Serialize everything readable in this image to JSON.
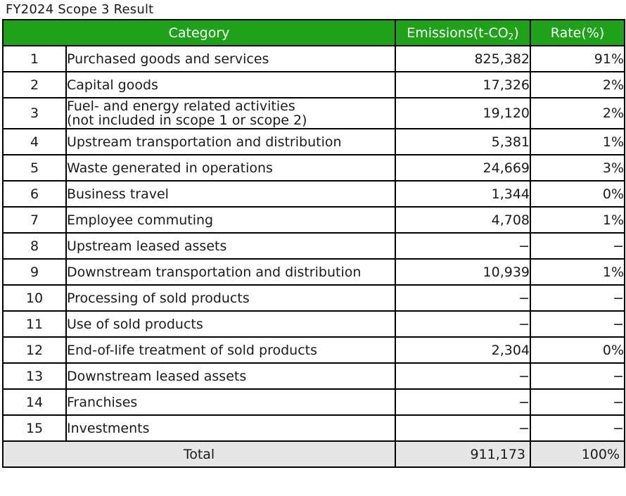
{
  "caption": "FY2024 Scope 3 Result",
  "colors": {
    "header_bg": "#1fa21a",
    "header_text": "#ffffff",
    "total_bg": "#e6e6e6",
    "border": "#000000"
  },
  "table": {
    "headers": {
      "category": "Category",
      "emissions_prefix": "Emissions(t-CO",
      "emissions_sub": "2",
      "emissions_suffix": ")",
      "rate": "Rate(%)"
    },
    "rows": [
      {
        "no": "1",
        "category": "Purchased goods and services",
        "emissions": "825,382",
        "rate": "91%"
      },
      {
        "no": "2",
        "category": "Capital goods",
        "emissions": "17,326",
        "rate": "2%"
      },
      {
        "no": "3",
        "category": "Fuel- and energy related activities",
        "category_line2": "(not included in scope 1 or scope 2)",
        "emissions": "19,120",
        "rate": "2%"
      },
      {
        "no": "4",
        "category": "Upstream transportation and distribution",
        "emissions": "5,381",
        "rate": "1%"
      },
      {
        "no": "5",
        "category": "Waste generated in operations",
        "emissions": "24,669",
        "rate": "3%"
      },
      {
        "no": "6",
        "category": "Business travel",
        "emissions": "1,344",
        "rate": "0%"
      },
      {
        "no": "7",
        "category": "Employee commuting",
        "emissions": "4,708",
        "rate": "1%"
      },
      {
        "no": "8",
        "category": "Upstream leased assets",
        "emissions": "−",
        "rate": "−"
      },
      {
        "no": "9",
        "category": "Downstream transportation and distribution",
        "emissions": "10,939",
        "rate": "1%"
      },
      {
        "no": "10",
        "category": "Processing of sold products",
        "emissions": "−",
        "rate": "−"
      },
      {
        "no": "11",
        "category": "Use of sold products",
        "emissions": "−",
        "rate": "−"
      },
      {
        "no": "12",
        "category": "End-of-life treatment of sold products",
        "emissions": "2,304",
        "rate": "0%"
      },
      {
        "no": "13",
        "category": "Downstream leased assets",
        "emissions": "−",
        "rate": "−"
      },
      {
        "no": "14",
        "category": "Franchises",
        "emissions": "−",
        "rate": "−"
      },
      {
        "no": "15",
        "category": "Investments",
        "emissions": "−",
        "rate": "−"
      }
    ],
    "total": {
      "label": "Total",
      "emissions": "911,173",
      "rate": "100%"
    }
  }
}
